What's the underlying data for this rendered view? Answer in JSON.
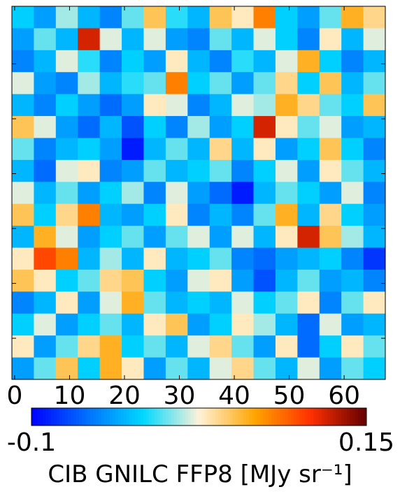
{
  "chart_data": {
    "type": "heatmap",
    "xlim": [
      -0.5,
      67.5
    ],
    "ylim": [
      -0.5,
      67.5
    ],
    "xticks": [
      0,
      10,
      20,
      30,
      40,
      50,
      60
    ],
    "yticks": [
      10,
      20,
      30,
      40,
      50,
      60
    ],
    "values": [
      [
        -0.02,
        -0.04,
        0.01,
        -0.03,
        -0.05,
        0.0,
        0.05,
        -0.01,
        -0.03,
        0.05,
        0.03,
        0.08,
        -0.02,
        -0.04,
        0.0,
        0.06,
        0.04
      ],
      [
        -0.04,
        0.0,
        -0.03,
        0.12,
        0.02,
        -0.03,
        0.02,
        -0.04,
        -0.05,
        0.0,
        -0.03,
        0.02,
        -0.02,
        -0.05,
        0.03,
        -0.03,
        0.02
      ],
      [
        -0.05,
        -0.03,
        0.02,
        -0.01,
        -0.05,
        -0.02,
        -0.04,
        0.03,
        -0.03,
        -0.05,
        -0.01,
        -0.03,
        0.02,
        0.06,
        -0.02,
        -0.05,
        -0.03
      ],
      [
        0.02,
        -0.04,
        -0.05,
        0.01,
        -0.03,
        -0.01,
        0.0,
        0.08,
        -0.02,
        0.0,
        -0.04,
        0.0,
        0.04,
        -0.02,
        0.05,
        -0.03,
        0.0
      ],
      [
        -0.03,
        -0.05,
        -0.02,
        -0.04,
        -0.06,
        -0.04,
        0.03,
        0.02,
        -0.05,
        -0.03,
        0.02,
        0.01,
        0.06,
        0.04,
        0.0,
        -0.02,
        0.05
      ],
      [
        0.05,
        0.02,
        -0.04,
        -0.06,
        -0.03,
        -0.07,
        -0.02,
        -0.05,
        0.01,
        -0.04,
        -0.02,
        0.12,
        0.03,
        0.0,
        0.02,
        -0.04,
        -0.03
      ],
      [
        0.0,
        -0.05,
        -0.03,
        -0.02,
        -0.04,
        -0.09,
        -0.03,
        0.0,
        -0.03,
        0.04,
        -0.03,
        0.03,
        -0.04,
        -0.02,
        0.05,
        -0.02,
        -0.05
      ],
      [
        -0.03,
        -0.06,
        0.02,
        0.03,
        -0.05,
        -0.04,
        0.0,
        -0.03,
        -0.02,
        0.0,
        -0.05,
        -0.02,
        0.02,
        -0.04,
        0.03,
        0.0,
        -0.03
      ],
      [
        0.02,
        -0.03,
        0.0,
        -0.04,
        -0.02,
        0.01,
        -0.05,
        0.02,
        -0.04,
        -0.06,
        -0.09,
        -0.03,
        0.0,
        -0.02,
        -0.04,
        0.02,
        -0.05
      ],
      [
        0.05,
        -0.02,
        0.04,
        0.08,
        -0.03,
        -0.04,
        -0.02,
        0.03,
        -0.05,
        -0.03,
        -0.05,
        0.0,
        0.06,
        -0.03,
        0.04,
        -0.02,
        -0.04
      ],
      [
        -0.03,
        0.06,
        0.02,
        -0.04,
        -0.02,
        0.0,
        -0.04,
        0.0,
        0.02,
        -0.04,
        0.02,
        -0.03,
        0.03,
        0.12,
        0.05,
        0.01,
        -0.03
      ],
      [
        0.03,
        0.1,
        0.08,
        -0.03,
        0.01,
        -0.03,
        0.03,
        -0.03,
        -0.02,
        0.0,
        -0.05,
        -0.06,
        -0.04,
        -0.03,
        -0.02,
        -0.05,
        -0.08
      ],
      [
        0.05,
        0.03,
        -0.02,
        0.0,
        0.04,
        0.05,
        -0.02,
        -0.04,
        0.02,
        0.03,
        -0.04,
        -0.07,
        -0.03,
        0.0,
        -0.04,
        -0.03,
        -0.05
      ],
      [
        -0.05,
        -0.03,
        0.03,
        -0.04,
        0.02,
        0.06,
        0.0,
        -0.03,
        -0.02,
        -0.03,
        0.02,
        -0.02,
        0.0,
        0.03,
        -0.05,
        0.0,
        0.03
      ],
      [
        -0.02,
        0.02,
        -0.04,
        -0.02,
        0.0,
        -0.03,
        0.03,
        0.05,
        -0.04,
        -0.02,
        0.03,
        0.01,
        -0.03,
        -0.06,
        0.02,
        -0.04,
        -0.03
      ],
      [
        0.03,
        -0.04,
        0.0,
        0.04,
        0.06,
        -0.02,
        0.0,
        -0.03,
        0.02,
        0.04,
        0.0,
        -0.04,
        0.03,
        -0.06,
        -0.02,
        0.03,
        0.0
      ],
      [
        -0.04,
        0.0,
        0.05,
        -0.02,
        0.06,
        0.03,
        -0.04,
        0.0,
        -0.03,
        0.02,
        0.04,
        0.0,
        -0.03,
        0.02,
        -0.04,
        0.0,
        -0.02
      ]
    ],
    "colormap": [
      "#0000ff",
      "#0070ff",
      "#00d8ff",
      "#fff2d8",
      "#ffa500",
      "#ff3000",
      "#640000"
    ],
    "colorbar": {
      "lim": [
        -0.1,
        0.15
      ],
      "ticks": [
        -0.1,
        0.15
      ],
      "label": "CIB GNILC FFP8 [MJy sr⁻¹]"
    }
  }
}
